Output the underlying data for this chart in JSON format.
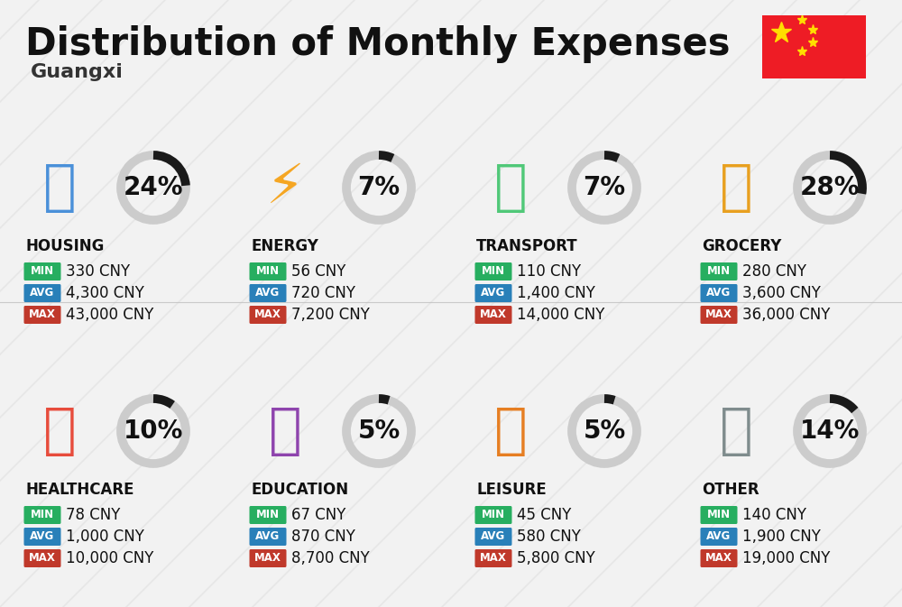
{
  "title": "Distribution of Monthly Expenses",
  "subtitle": "Guangxi",
  "background_color": "#f2f2f2",
  "categories": [
    {
      "name": "HOUSING",
      "pct": 24,
      "min": "330 CNY",
      "avg": "4,300 CNY",
      "max": "43,000 CNY",
      "row": 0,
      "col": 0
    },
    {
      "name": "ENERGY",
      "pct": 7,
      "min": "56 CNY",
      "avg": "720 CNY",
      "max": "7,200 CNY",
      "row": 0,
      "col": 1
    },
    {
      "name": "TRANSPORT",
      "pct": 7,
      "min": "110 CNY",
      "avg": "1,400 CNY",
      "max": "14,000 CNY",
      "row": 0,
      "col": 2
    },
    {
      "name": "GROCERY",
      "pct": 28,
      "min": "280 CNY",
      "avg": "3,600 CNY",
      "max": "36,000 CNY",
      "row": 0,
      "col": 3
    },
    {
      "name": "HEALTHCARE",
      "pct": 10,
      "min": "78 CNY",
      "avg": "1,000 CNY",
      "max": "10,000 CNY",
      "row": 1,
      "col": 0
    },
    {
      "name": "EDUCATION",
      "pct": 5,
      "min": "67 CNY",
      "avg": "870 CNY",
      "max": "8,700 CNY",
      "row": 1,
      "col": 1
    },
    {
      "name": "LEISURE",
      "pct": 5,
      "min": "45 CNY",
      "avg": "580 CNY",
      "max": "5,800 CNY",
      "row": 1,
      "col": 2
    },
    {
      "name": "OTHER",
      "pct": 14,
      "min": "140 CNY",
      "avg": "1,900 CNY",
      "max": "19,000 CNY",
      "row": 1,
      "col": 3
    }
  ],
  "min_color": "#27ae60",
  "avg_color": "#2980b9",
  "max_color": "#c0392b",
  "donut_dark": "#1a1a1a",
  "donut_light": "#cccccc",
  "title_fontsize": 30,
  "subtitle_fontsize": 16,
  "cat_fontsize": 12,
  "pct_fontsize": 20,
  "badge_fontsize": 8.5,
  "val_fontsize": 12,
  "stripe_color": "#dedede",
  "flag_red": "#EE1C25",
  "flag_star": "#FFDE00"
}
